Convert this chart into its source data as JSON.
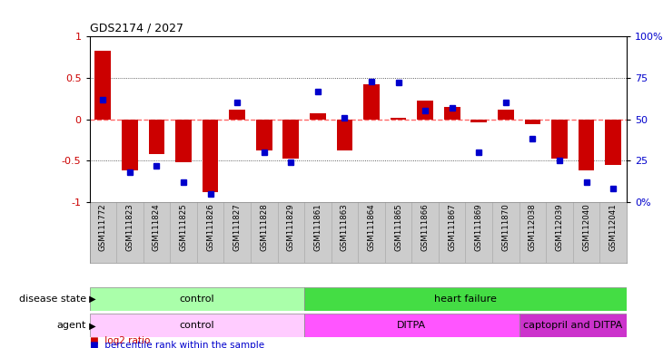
{
  "title": "GDS2174 / 2027",
  "samples": [
    "GSM111772",
    "GSM111823",
    "GSM111824",
    "GSM111825",
    "GSM111826",
    "GSM111827",
    "GSM111828",
    "GSM111829",
    "GSM111861",
    "GSM111863",
    "GSM111864",
    "GSM111865",
    "GSM111866",
    "GSM111867",
    "GSM111869",
    "GSM111870",
    "GSM112038",
    "GSM112039",
    "GSM112040",
    "GSM112041"
  ],
  "log2_ratio": [
    0.83,
    -0.62,
    -0.42,
    -0.52,
    -0.88,
    0.12,
    -0.38,
    -0.48,
    0.07,
    -0.38,
    0.42,
    0.02,
    0.22,
    0.15,
    -0.04,
    0.12,
    -0.06,
    -0.48,
    -0.62,
    -0.55
  ],
  "percentile_rank": [
    0.62,
    0.18,
    0.22,
    0.12,
    0.05,
    0.6,
    0.3,
    0.24,
    0.67,
    0.51,
    0.73,
    0.72,
    0.55,
    0.57,
    0.3,
    0.6,
    0.38,
    0.25,
    0.12,
    0.08
  ],
  "bar_color": "#cc0000",
  "dot_color": "#0000cc",
  "disease_state_groups": [
    {
      "label": "control",
      "start": 0,
      "end": 8,
      "color": "#aaffaa"
    },
    {
      "label": "heart failure",
      "start": 8,
      "end": 20,
      "color": "#44dd44"
    }
  ],
  "agent_groups": [
    {
      "label": "control",
      "start": 0,
      "end": 8,
      "color": "#ffccff"
    },
    {
      "label": "DITPA",
      "start": 8,
      "end": 16,
      "color": "#ff55ff"
    },
    {
      "label": "captopril and DITPA",
      "start": 16,
      "end": 20,
      "color": "#cc33cc"
    }
  ],
  "ylim": [
    -1,
    1
  ],
  "yticks": [
    -1,
    -0.5,
    0,
    0.5,
    1
  ],
  "ytick_labels": [
    "-1",
    "-0.5",
    "0",
    "0.5",
    "1"
  ],
  "right_ytick_labels": [
    "0%",
    "25",
    "50",
    "75",
    "100%"
  ],
  "legend_items": [
    "log2 ratio",
    "percentile rank within the sample"
  ],
  "legend_colors": [
    "#cc0000",
    "#0000cc"
  ],
  "row1_label": "disease state",
  "row2_label": "agent",
  "bg_color": "#ffffff",
  "tick_bg_color": "#cccccc",
  "zero_line_color": "#ff6666",
  "grid_color": "#333333"
}
